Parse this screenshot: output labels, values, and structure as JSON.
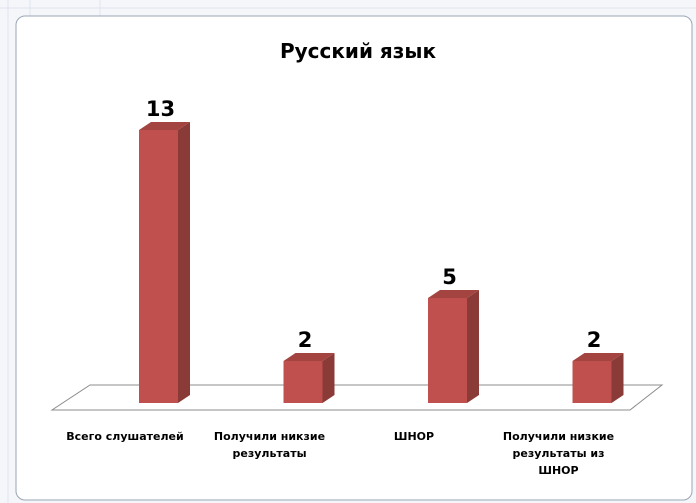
{
  "chart_data": {
    "type": "bar3d",
    "title": "Русский язык",
    "categories": [
      "Всего слушателей",
      "Получили никзие результаты",
      "ШНОР",
      "Получили низкие результаты из ШНОР"
    ],
    "values": [
      13,
      2,
      5,
      2
    ],
    "color": "#c0504d"
  }
}
